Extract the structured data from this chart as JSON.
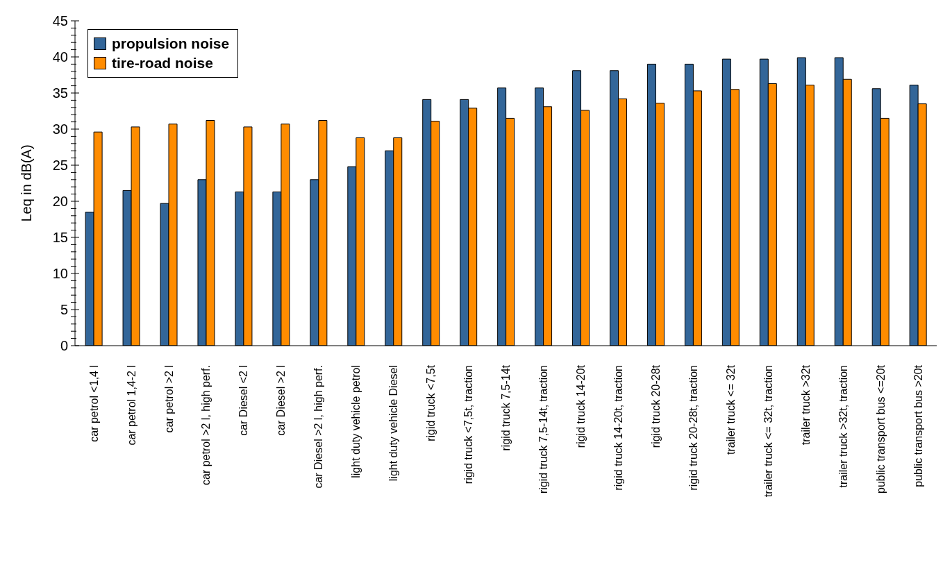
{
  "chart_data": {
    "type": "bar",
    "ylabel": "Leq in dB(A)",
    "categories": [
      "car petrol <1,4 l",
      "car petrol 1,4-2 l",
      "car petrol >2 l",
      "car petrol >2 l, high perf.",
      "car Diesel <2 l",
      "car Diesel >2 l",
      "car Diesel >2 l, high perf.",
      "light duty vehicle petrol",
      "light duty vehicle Diesel",
      "rigid truck <7,5t",
      "rigid truck <7,5t,  traction",
      "rigid truck 7,5-14t",
      "rigid truck 7,5-14t, traction",
      "rigid truck 14-20t",
      "rigid truck 14-20t,  traction",
      "rigid truck 20-28t",
      "rigid truck 20-28t,  traction",
      "trailer truck <= 32t",
      "trailer truck <= 32t, traction",
      "trailer truck >32t",
      "trailer truck >32t,  traction",
      "public transport bus <=20t",
      "public transport bus >20t"
    ],
    "series": [
      {
        "name": "propulsion noise",
        "color": "#336699",
        "values": [
          18.5,
          21.5,
          19.7,
          23,
          21.3,
          21.3,
          23,
          24.8,
          27,
          34.1,
          34.1,
          35.7,
          35.7,
          38.1,
          38.1,
          39,
          39,
          39.7,
          39.7,
          39.9,
          39.9,
          35.6,
          36.1
        ]
      },
      {
        "name": "tire-road noise",
        "color": "#ff8c00",
        "values": [
          29.6,
          30.3,
          30.7,
          31.2,
          30.3,
          30.7,
          31.2,
          28.8,
          28.8,
          31.1,
          32.9,
          31.5,
          33.1,
          32.6,
          34.2,
          33.6,
          35.3,
          35.5,
          36.3,
          36.1,
          36.9,
          31.5,
          33.5
        ]
      }
    ],
    "ylim": [
      0,
      45
    ],
    "yticks": [
      0,
      {
        "value": 1,
        "label": null
      },
      {
        "value": 2,
        "label": null
      },
      {
        "value": 3,
        "label": null
      },
      {
        "value": 4,
        "label": null
      },
      5,
      {
        "value": 6,
        "label": null
      },
      {
        "value": 7,
        "label": null
      },
      {
        "value": 8,
        "label": null
      },
      {
        "value": 9,
        "label": null
      },
      10,
      {
        "value": 11,
        "label": null
      },
      {
        "value": 12,
        "label": null
      },
      {
        "value": 13,
        "label": null
      },
      {
        "value": 14,
        "label": null
      },
      15,
      {
        "value": 16,
        "label": null
      },
      {
        "value": 17,
        "label": null
      },
      {
        "value": 18,
        "label": null
      },
      {
        "value": 19,
        "label": null
      },
      20,
      {
        "value": 21,
        "label": null
      },
      {
        "value": 22,
        "label": null
      },
      {
        "value": 23,
        "label": null
      },
      {
        "value": 24,
        "label": null
      },
      25,
      {
        "value": 26,
        "label": null
      },
      {
        "value": 27,
        "label": null
      },
      {
        "value": 28,
        "label": null
      },
      {
        "value": 29,
        "label": null
      },
      30,
      {
        "value": 31,
        "label": null
      },
      {
        "value": 32,
        "label": null
      },
      {
        "value": 33,
        "label": null
      },
      {
        "value": 34,
        "label": null
      },
      35,
      {
        "value": 36,
        "label": null
      },
      {
        "value": 37,
        "label": null
      },
      {
        "value": 38,
        "label": null
      },
      {
        "value": 39,
        "label": null
      },
      40,
      {
        "value": 41,
        "label": null
      },
      {
        "value": 42,
        "label": null
      },
      {
        "value": 43,
        "label": null
      },
      {
        "value": 44,
        "label": null
      },
      45
    ],
    "grid": false,
    "legend": "top left"
  }
}
